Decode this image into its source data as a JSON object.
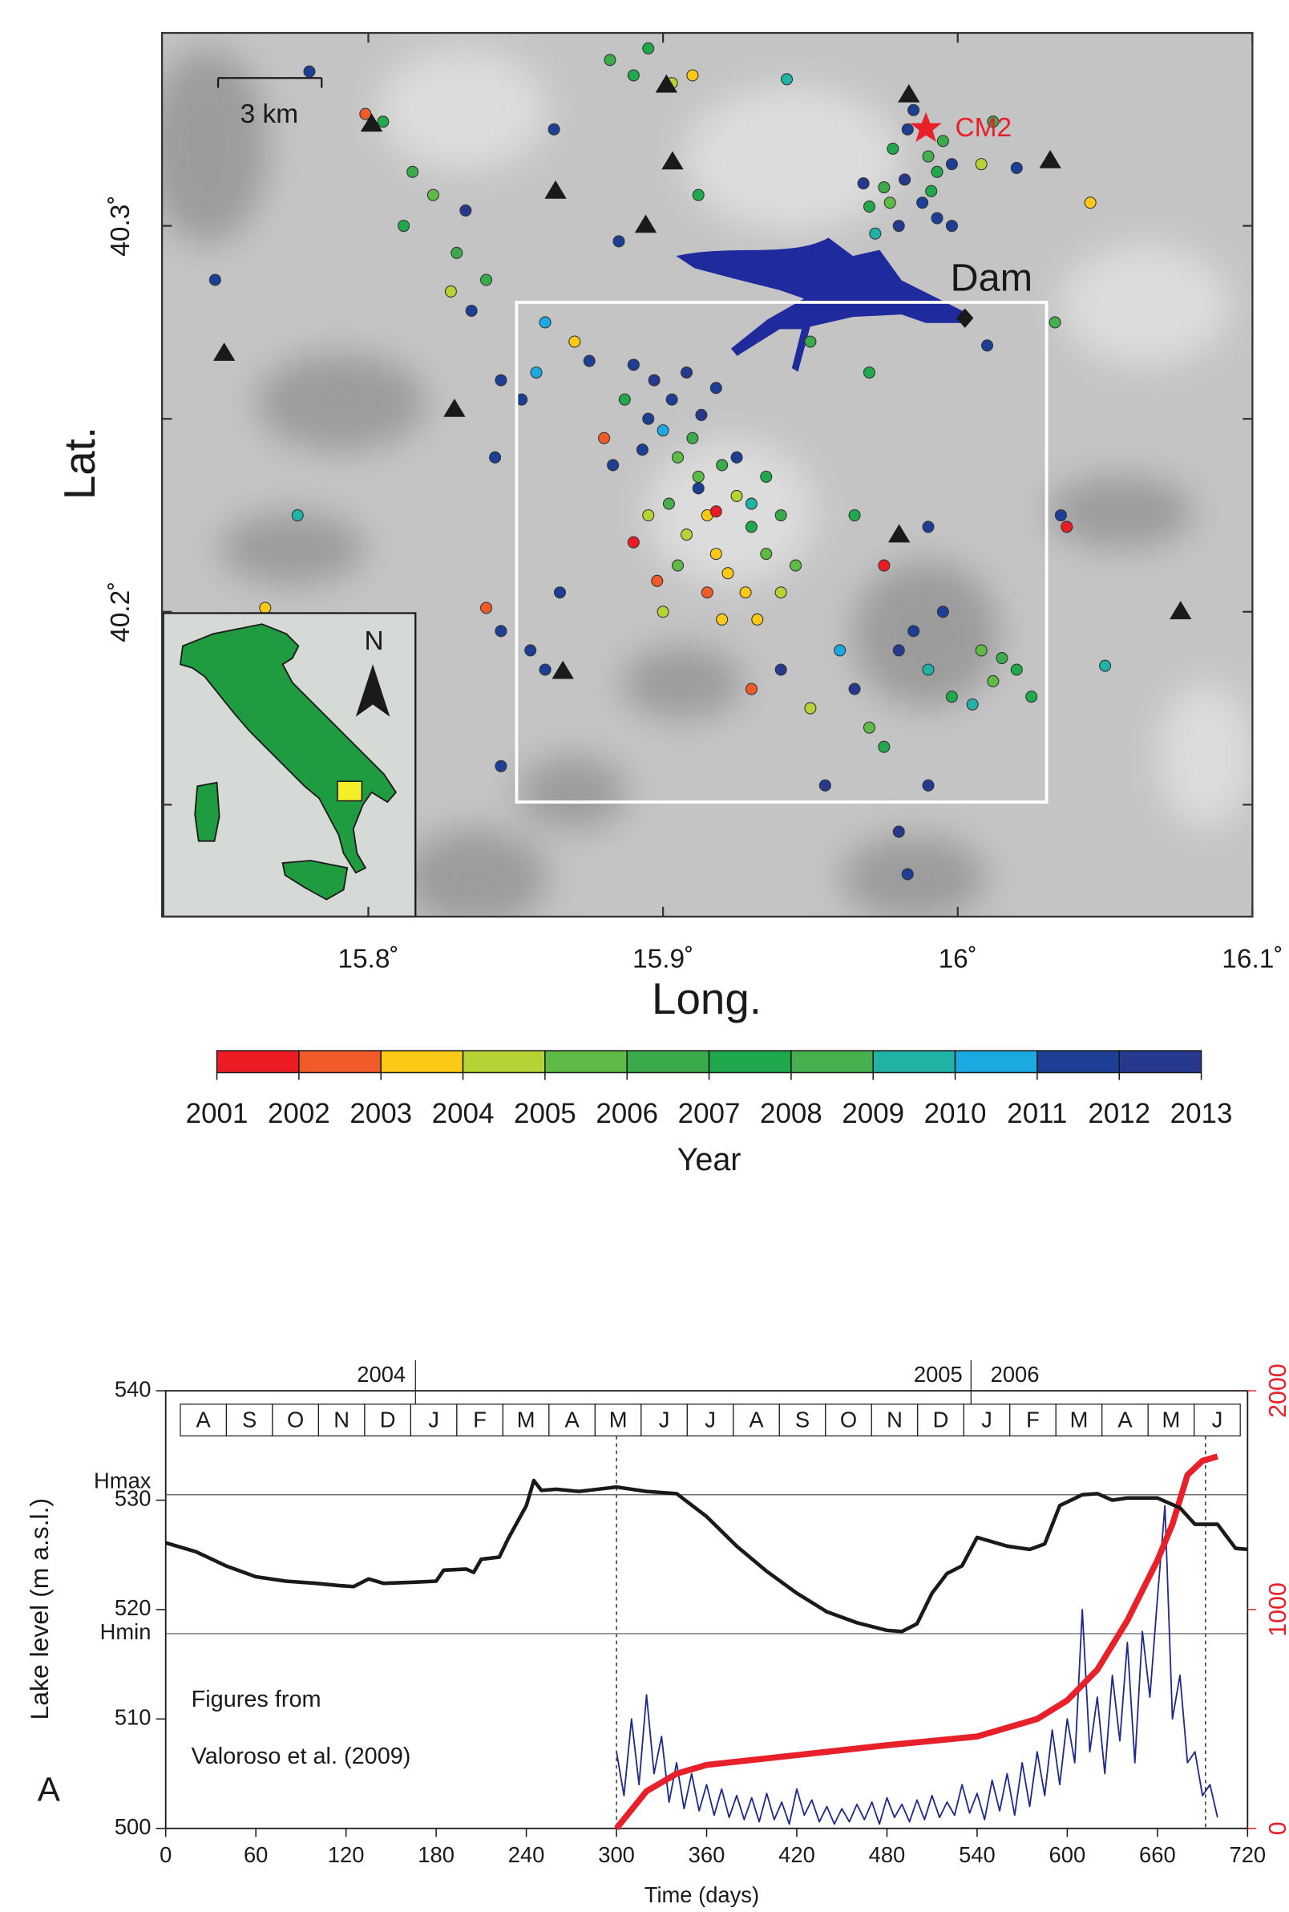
{
  "chart_data": [
    {
      "type": "scatter",
      "xlabel": "Long.",
      "ylabel": "Lat.",
      "xlim": [
        15.73,
        16.1
      ],
      "ylim": [
        40.121,
        40.35
      ],
      "xticks": [
        {
          "value": 15.8,
          "label": "15.8˚"
        },
        {
          "value": 15.9,
          "label": "15.9˚"
        },
        {
          "value": 16,
          "label": "16˚"
        },
        {
          "value": 16.1,
          "label": "16.1˚"
        }
      ],
      "yticks": [
        {
          "value": 40.2,
          "label": "40.2˚"
        },
        {
          "value": 40.3,
          "label": "40.3˚"
        }
      ],
      "yminor": [
        40.15,
        40.25
      ],
      "annotations": {
        "scale": "3 km",
        "dam": "Dam",
        "station": "CM2",
        "north": "N"
      },
      "x": [
        15.985,
        15.978,
        15.99,
        15.982,
        15.975,
        15.993,
        15.988,
        15.97,
        15.98,
        15.972,
        15.995,
        15.998,
        15.977,
        15.991,
        15.968,
        16.008,
        16.012,
        15.983,
        16.045,
        15.993,
        15.805,
        15.815,
        15.822,
        15.812,
        15.83,
        15.833,
        15.828,
        15.835,
        15.84,
        15.748,
        15.78,
        15.799,
        15.863,
        15.86,
        15.845,
        15.852,
        15.857,
        15.843,
        15.89,
        15.895,
        15.882,
        15.903,
        15.91,
        15.942,
        15.885,
        15.912,
        15.998,
        16.02,
        15.95,
        15.97,
        15.89,
        15.897,
        15.903,
        15.908,
        15.895,
        15.913,
        15.887,
        15.9,
        15.918,
        15.88,
        15.893,
        15.905,
        15.875,
        15.883,
        15.87,
        15.912,
        15.92,
        15.925,
        15.915,
        15.93,
        15.918,
        15.922,
        15.935,
        15.908,
        15.928,
        15.94,
        15.902,
        15.915,
        15.932,
        15.905,
        15.925,
        15.91,
        15.935,
        15.895,
        15.945,
        15.9,
        15.92,
        15.912,
        15.93,
        15.89,
        15.898,
        15.94,
        15.918,
        15.985,
        15.98,
        15.99,
        15.998,
        16.008,
        16.015,
        16.02,
        16.012,
        16.025,
        16.005,
        15.965,
        15.96,
        15.95,
        15.97,
        15.975,
        15.99,
        15.955,
        15.983,
        15.98,
        15.975,
        15.99,
        15.965,
        15.94,
        15.93,
        15.995,
        15.776,
        15.765,
        15.84,
        15.845,
        15.855,
        15.865,
        15.86,
        15.845,
        16.035,
        16.037,
        16.05,
        16.033,
        16.01
      ],
      "values": [
        40.33,
        40.32,
        40.318,
        40.312,
        40.31,
        40.314,
        40.306,
        40.305,
        40.3,
        40.298,
        40.322,
        40.316,
        40.306,
        40.309,
        40.311,
        40.316,
        40.327,
        40.325,
        40.306,
        40.302,
        40.327,
        40.314,
        40.308,
        40.3,
        40.293,
        40.304,
        40.283,
        40.278,
        40.286,
        40.286,
        40.34,
        40.329,
        40.325,
        40.275,
        40.26,
        40.255,
        40.262,
        40.24,
        40.339,
        40.346,
        40.343,
        40.337,
        40.339,
        40.338,
        40.296,
        40.308,
        40.3,
        40.315,
        40.27,
        40.262,
        40.264,
        40.26,
        40.255,
        40.262,
        40.25,
        40.251,
        40.255,
        40.247,
        40.258,
        40.245,
        40.242,
        40.24,
        40.265,
        40.238,
        40.27,
        40.235,
        40.238,
        40.23,
        40.225,
        40.222,
        40.215,
        40.21,
        40.215,
        40.22,
        40.205,
        40.225,
        40.228,
        40.205,
        40.198,
        40.212,
        40.24,
        40.245,
        40.235,
        40.225,
        40.212,
        40.2,
        40.198,
        40.232,
        40.228,
        40.218,
        40.208,
        40.205,
        40.226,
        40.195,
        40.19,
        40.185,
        40.178,
        40.19,
        40.188,
        40.185,
        40.182,
        40.178,
        40.176,
        40.18,
        40.19,
        40.175,
        40.17,
        40.165,
        40.155,
        40.155,
        40.132,
        40.143,
        40.212,
        40.222,
        40.225,
        40.185,
        40.18,
        40.2,
        40.225,
        40.201,
        40.201,
        40.195,
        40.19,
        40.205,
        40.185,
        40.16,
        40.225,
        40.222,
        40.186,
        40.275,
        40.269
      ],
      "years": [
        2011,
        2007,
        2008,
        2012,
        2006,
        2007,
        2011,
        2007,
        2012,
        2009,
        2006,
        2011,
        2005,
        2007,
        2012,
        2004,
        2006,
        2011,
        2003,
        2011,
        2007,
        2006,
        2005,
        2007,
        2006,
        2012,
        2004,
        2011,
        2006,
        2011,
        2011,
        2002,
        2011,
        2010,
        2011,
        2011,
        2010,
        2011,
        2007,
        2007,
        2006,
        2004,
        2003,
        2009,
        2011,
        2007,
        2011,
        2011,
        2006,
        2007,
        2011,
        2012,
        2011,
        2012,
        2011,
        2012,
        2007,
        2010,
        2011,
        2002,
        2011,
        2005,
        2011,
        2011,
        2003,
        2005,
        2006,
        2004,
        2003,
        2007,
        2003,
        2003,
        2005,
        2004,
        2003,
        2006,
        2008,
        2002,
        2003,
        2005,
        2011,
        2006,
        2007,
        2004,
        2005,
        2004,
        2003,
        2011,
        2009,
        2001,
        2002,
        2004,
        2001,
        2011,
        2012,
        2009,
        2007,
        2005,
        2006,
        2007,
        2005,
        2007,
        2009,
        2012,
        2010,
        2004,
        2005,
        2007,
        2012,
        2012,
        2011,
        2012,
        2001,
        2011,
        2007,
        2012,
        2002,
        2011,
        2009,
        2003,
        2002,
        2011,
        2011,
        2011,
        2011,
        2011,
        2011,
        2001,
        2009,
        2008,
        2011
      ],
      "colorbar": {
        "title": "Year",
        "ticks": [
          2001,
          2002,
          2003,
          2004,
          2005,
          2006,
          2007,
          2008,
          2009,
          2010,
          2011,
          2012,
          2013
        ],
        "colors": [
          "#ed1c24",
          "#f15a29",
          "#fcc917",
          "#b5d334",
          "#5dbb46",
          "#3aaa4a",
          "#1fa84c",
          "#46b04f",
          "#20b2a4",
          "#1ba9e1",
          "#1c3f95",
          "#27388f",
          "#3b3a94"
        ]
      }
    },
    {
      "type": "line",
      "xlabel": "Time (days)",
      "ylabel": "Lake level (m a.s.l.)",
      "panel": "A",
      "note": [
        "Figures from",
        "Valoroso et al. (2009)"
      ],
      "months": [
        "A",
        "S",
        "O",
        "N",
        "D",
        "J",
        "F",
        "M",
        "A",
        "M",
        "J",
        "J",
        "A",
        "S",
        "O",
        "N",
        "D",
        "J",
        "F",
        "M",
        "A",
        "M",
        "J"
      ],
      "years": [
        "2004",
        "2005",
        "2006"
      ],
      "xlim": [
        0,
        720
      ],
      "xticks": [
        0,
        60,
        120,
        180,
        240,
        300,
        360,
        420,
        480,
        540,
        600,
        660,
        720
      ],
      "ylim": [
        500,
        540
      ],
      "yticks": [
        500,
        510,
        {
          "value": 517.8,
          "label": "Hmin"
        },
        520,
        530,
        {
          "value": 530.5,
          "label": "Hmax"
        },
        540
      ],
      "y2lim": [
        0,
        2000
      ],
      "y2ticks": [
        0,
        1000,
        2000
      ],
      "y2color": "#e8202a",
      "vlines": [
        300,
        692
      ],
      "series": [
        {
          "color": "#1a1a1a",
          "width": 3,
          "x": [
            0,
            20,
            40,
            60,
            80,
            100,
            115,
            125,
            135,
            145,
            165,
            180,
            185,
            200,
            205,
            210,
            222,
            228,
            240,
            245,
            250,
            260,
            275,
            300,
            320,
            340,
            360,
            380,
            400,
            420,
            440,
            460,
            480,
            490,
            500,
            510,
            520,
            530,
            540,
            560,
            575,
            585,
            595,
            610,
            620,
            630,
            640,
            660,
            675,
            685,
            700,
            712,
            720
          ],
          "values": [
            526.1,
            525.3,
            524,
            523,
            522.6,
            522.4,
            522.2,
            522.1,
            522.8,
            522.4,
            522.5,
            522.6,
            523.6,
            523.7,
            523.4,
            524.6,
            524.8,
            526.5,
            529.5,
            531.8,
            530.9,
            531,
            530.8,
            531.2,
            530.8,
            530.6,
            528.5,
            525.8,
            523.5,
            521.5,
            519.8,
            518.8,
            518.1,
            518,
            518.7,
            521.5,
            523.3,
            524,
            526.6,
            525.8,
            525.5,
            526,
            529.5,
            530.5,
            530.6,
            530,
            530.2,
            530.2,
            529.3,
            527.8,
            527.8,
            525.6,
            525.5
          ]
        },
        {
          "color": "#e8202a",
          "width": 5,
          "axis": "y2",
          "x": [
            300,
            320,
            340,
            360,
            420,
            480,
            540,
            580,
            600,
            620,
            640,
            660,
            670,
            680,
            690,
            700
          ],
          "values": [
            0,
            170,
            250,
            290,
            335,
            380,
            420,
            500,
            585,
            725,
            950,
            1225,
            1390,
            1615,
            1680,
            1700
          ]
        },
        {
          "color": "#1f2a8c",
          "width": 1.2,
          "axis": "y2",
          "x": [
            300,
            305,
            310,
            315,
            320,
            325,
            330,
            335,
            340,
            345,
            350,
            355,
            360,
            365,
            370,
            375,
            380,
            385,
            390,
            395,
            400,
            405,
            410,
            415,
            420,
            425,
            430,
            435,
            440,
            445,
            450,
            455,
            460,
            465,
            470,
            475,
            480,
            485,
            490,
            495,
            500,
            505,
            510,
            515,
            520,
            525,
            530,
            535,
            540,
            545,
            550,
            555,
            560,
            565,
            570,
            575,
            580,
            585,
            590,
            595,
            600,
            605,
            610,
            615,
            620,
            625,
            630,
            635,
            640,
            645,
            650,
            655,
            660,
            665,
            670,
            675,
            680,
            685,
            690,
            695,
            700
          ],
          "values": [
            350,
            150,
            500,
            200,
            610,
            250,
            420,
            120,
            300,
            90,
            250,
            80,
            200,
            60,
            180,
            50,
            150,
            40,
            140,
            30,
            160,
            40,
            120,
            20,
            180,
            60,
            130,
            30,
            100,
            20,
            90,
            30,
            110,
            40,
            120,
            20,
            140,
            50,
            110,
            30,
            130,
            40,
            150,
            50,
            120,
            60,
            200,
            70,
            160,
            40,
            220,
            80,
            250,
            60,
            300,
            100,
            350,
            150,
            450,
            200,
            500,
            300,
            1000,
            350,
            600,
            250,
            700,
            400,
            850,
            300,
            900,
            600,
            1050,
            1475,
            500,
            700,
            300,
            350,
            150,
            200,
            50
          ]
        }
      ]
    }
  ]
}
